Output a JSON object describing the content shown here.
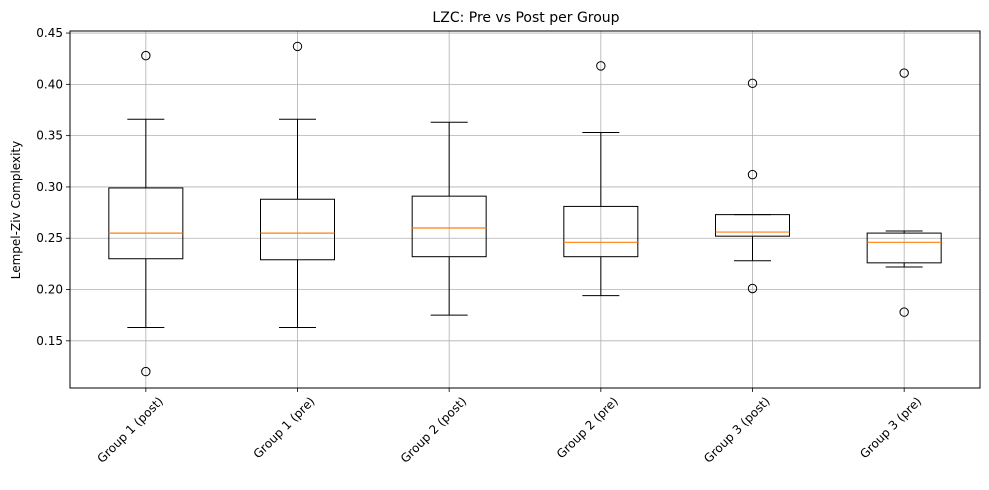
{
  "chart_data": {
    "type": "box",
    "title": "LZC: Pre vs Post per Group",
    "xlabel": "",
    "ylabel": "Lempel-Ziv Complexity",
    "ylim": [
      0.104,
      0.452
    ],
    "yticks": [
      "0.15",
      "0.20",
      "0.25",
      "0.30",
      "0.35",
      "0.40",
      "0.45"
    ],
    "grid": true,
    "categories": [
      "Group 1 (post)",
      "Group 1 (pre)",
      "Group 2 (post)",
      "Group 2 (pre)",
      "Group 3 (post)",
      "Group 3 (pre)"
    ],
    "boxes": [
      {
        "whisker_low": 0.163,
        "q1": 0.23,
        "median": 0.255,
        "q3": 0.299,
        "whisker_high": 0.366,
        "outliers": [
          0.428,
          0.12
        ]
      },
      {
        "whisker_low": 0.163,
        "q1": 0.229,
        "median": 0.255,
        "q3": 0.288,
        "whisker_high": 0.366,
        "outliers": [
          0.437
        ]
      },
      {
        "whisker_low": 0.175,
        "q1": 0.232,
        "median": 0.26,
        "q3": 0.291,
        "whisker_high": 0.363,
        "outliers": []
      },
      {
        "whisker_low": 0.194,
        "q1": 0.232,
        "median": 0.246,
        "q3": 0.281,
        "whisker_high": 0.353,
        "outliers": [
          0.418
        ]
      },
      {
        "whisker_low": 0.228,
        "q1": 0.252,
        "median": 0.256,
        "q3": 0.273,
        "whisker_high": 0.273,
        "outliers": [
          0.401,
          0.312,
          0.201
        ]
      },
      {
        "whisker_low": 0.222,
        "q1": 0.226,
        "median": 0.246,
        "q3": 0.255,
        "whisker_high": 0.257,
        "outliers": [
          0.411,
          0.178
        ]
      }
    ],
    "colors": {
      "box": "#000000",
      "median": "#ff7f0e",
      "grid": "#b0b0b0"
    }
  }
}
